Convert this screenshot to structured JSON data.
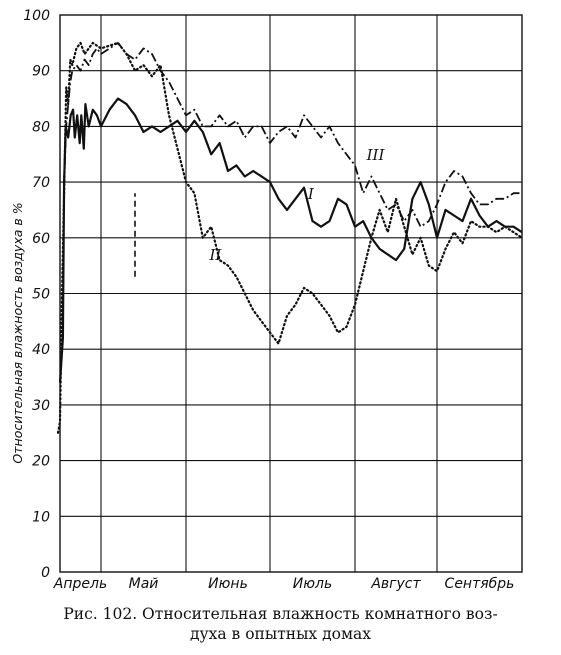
{
  "chart_data": {
    "type": "line",
    "ylim": [
      0,
      100
    ],
    "yticks": [
      "0",
      "10",
      "20",
      "30",
      "40",
      "50",
      "60",
      "70",
      "80",
      "90",
      "100"
    ],
    "ylabel": "Относительная влажность воздуха в %",
    "months": [
      "Апрель",
      "Май",
      "Июнь",
      "Июль",
      "Август",
      "Сентябрь"
    ],
    "xlim": [
      0,
      6
    ],
    "grid": true,
    "series": [
      {
        "name": "I",
        "style": "solid",
        "points": [
          [
            0.0,
            34
          ],
          [
            0.07,
            42
          ],
          [
            0.1,
            70
          ],
          [
            0.14,
            80
          ],
          [
            0.2,
            78
          ],
          [
            0.26,
            82
          ],
          [
            0.32,
            83
          ],
          [
            0.36,
            78
          ],
          [
            0.42,
            82
          ],
          [
            0.48,
            77
          ],
          [
            0.52,
            82
          ],
          [
            0.58,
            76
          ],
          [
            0.62,
            84
          ],
          [
            0.7,
            80
          ],
          [
            0.8,
            83
          ],
          [
            0.9,
            82
          ],
          [
            1.0,
            80
          ],
          [
            1.1,
            83
          ],
          [
            1.2,
            85
          ],
          [
            1.3,
            84
          ],
          [
            1.4,
            82
          ],
          [
            1.5,
            79
          ],
          [
            1.6,
            80
          ],
          [
            1.7,
            79
          ],
          [
            1.8,
            80
          ],
          [
            1.9,
            81
          ],
          [
            2.0,
            79
          ],
          [
            2.1,
            81
          ],
          [
            2.2,
            79
          ],
          [
            2.3,
            75
          ],
          [
            2.4,
            77
          ],
          [
            2.5,
            72
          ],
          [
            2.6,
            73
          ],
          [
            2.7,
            71
          ],
          [
            2.8,
            72
          ],
          [
            2.9,
            71
          ],
          [
            3.0,
            70
          ],
          [
            3.1,
            67
          ],
          [
            3.2,
            65
          ],
          [
            3.3,
            67
          ],
          [
            3.4,
            69
          ],
          [
            3.5,
            63
          ],
          [
            3.6,
            62
          ],
          [
            3.7,
            63
          ],
          [
            3.8,
            67
          ],
          [
            3.9,
            66
          ],
          [
            4.0,
            62
          ],
          [
            4.1,
            63
          ],
          [
            4.2,
            60
          ],
          [
            4.3,
            58
          ],
          [
            4.4,
            57
          ],
          [
            4.5,
            56
          ],
          [
            4.6,
            58
          ],
          [
            4.7,
            67
          ],
          [
            4.8,
            70
          ],
          [
            4.9,
            66
          ],
          [
            5.0,
            60
          ],
          [
            5.1,
            65
          ],
          [
            5.2,
            64
          ],
          [
            5.3,
            63
          ],
          [
            5.4,
            67
          ],
          [
            5.5,
            64
          ],
          [
            5.6,
            62
          ],
          [
            5.7,
            63
          ],
          [
            5.8,
            62
          ],
          [
            5.9,
            62
          ],
          [
            6.0,
            61
          ]
        ]
      },
      {
        "name": "II",
        "style": "dotted",
        "points": [
          [
            -0.05,
            25
          ],
          [
            0.0,
            27
          ],
          [
            0.05,
            50
          ],
          [
            0.1,
            68
          ],
          [
            0.15,
            87
          ],
          [
            0.2,
            84
          ],
          [
            0.25,
            92
          ],
          [
            0.3,
            91
          ],
          [
            0.4,
            94
          ],
          [
            0.5,
            95
          ],
          [
            0.6,
            93
          ],
          [
            0.8,
            95
          ],
          [
            1.0,
            94
          ],
          [
            1.2,
            95
          ],
          [
            1.3,
            93
          ],
          [
            1.4,
            90
          ],
          [
            1.5,
            91
          ],
          [
            1.6,
            89
          ],
          [
            1.7,
            91
          ],
          [
            1.8,
            82
          ],
          [
            1.9,
            76
          ],
          [
            2.0,
            70
          ],
          [
            2.1,
            68
          ],
          [
            2.2,
            60
          ],
          [
            2.3,
            62
          ],
          [
            2.4,
            56
          ],
          [
            2.5,
            55
          ],
          [
            2.6,
            53
          ],
          [
            2.7,
            50
          ],
          [
            2.8,
            47
          ],
          [
            2.9,
            45
          ],
          [
            3.0,
            43
          ],
          [
            3.1,
            41
          ],
          [
            3.2,
            46
          ],
          [
            3.3,
            48
          ],
          [
            3.4,
            51
          ],
          [
            3.5,
            50
          ],
          [
            3.6,
            48
          ],
          [
            3.7,
            46
          ],
          [
            3.8,
            43
          ],
          [
            3.9,
            44
          ],
          [
            4.0,
            48
          ],
          [
            4.1,
            54
          ],
          [
            4.2,
            60
          ],
          [
            4.3,
            65
          ],
          [
            4.4,
            61
          ],
          [
            4.5,
            67
          ],
          [
            4.6,
            62
          ],
          [
            4.7,
            57
          ],
          [
            4.8,
            60
          ],
          [
            4.9,
            55
          ],
          [
            5.0,
            54
          ],
          [
            5.1,
            58
          ],
          [
            5.2,
            61
          ],
          [
            5.3,
            59
          ],
          [
            5.4,
            63
          ],
          [
            5.5,
            62
          ],
          [
            5.6,
            62
          ],
          [
            5.7,
            61
          ],
          [
            5.8,
            62
          ],
          [
            5.9,
            61
          ],
          [
            6.0,
            60
          ]
        ]
      },
      {
        "name": "III",
        "style": "dashdot",
        "points": [
          [
            0.1,
            70
          ],
          [
            0.15,
            80
          ],
          [
            0.2,
            84
          ],
          [
            0.25,
            88
          ],
          [
            0.3,
            90
          ],
          [
            0.4,
            91
          ],
          [
            0.5,
            90
          ],
          [
            0.6,
            92
          ],
          [
            0.7,
            91
          ],
          [
            0.8,
            93
          ],
          [
            0.9,
            94
          ],
          [
            1.0,
            93
          ],
          [
            1.1,
            94
          ],
          [
            1.2,
            95
          ],
          [
            1.3,
            93
          ],
          [
            1.4,
            92
          ],
          [
            1.5,
            94
          ],
          [
            1.6,
            93
          ],
          [
            1.7,
            90
          ],
          [
            1.8,
            88
          ],
          [
            1.9,
            85
          ],
          [
            2.0,
            82
          ],
          [
            2.1,
            83
          ],
          [
            2.2,
            80
          ],
          [
            2.3,
            80
          ],
          [
            2.4,
            82
          ],
          [
            2.5,
            80
          ],
          [
            2.6,
            81
          ],
          [
            2.7,
            78
          ],
          [
            2.8,
            80
          ],
          [
            2.9,
            80
          ],
          [
            3.0,
            77
          ],
          [
            3.1,
            79
          ],
          [
            3.2,
            80
          ],
          [
            3.3,
            78
          ],
          [
            3.4,
            82
          ],
          [
            3.5,
            80
          ],
          [
            3.6,
            78
          ],
          [
            3.7,
            80
          ],
          [
            3.8,
            77
          ],
          [
            3.9,
            75
          ],
          [
            4.0,
            73
          ],
          [
            4.1,
            68
          ],
          [
            4.2,
            71
          ],
          [
            4.3,
            68
          ],
          [
            4.4,
            65
          ],
          [
            4.5,
            66
          ],
          [
            4.6,
            63
          ],
          [
            4.7,
            65
          ],
          [
            4.8,
            62
          ],
          [
            4.9,
            63
          ],
          [
            5.0,
            66
          ],
          [
            5.1,
            70
          ],
          [
            5.2,
            72
          ],
          [
            5.3,
            71
          ],
          [
            5.4,
            68
          ],
          [
            5.5,
            66
          ],
          [
            5.6,
            66
          ],
          [
            5.7,
            67
          ],
          [
            5.8,
            67
          ],
          [
            5.9,
            68
          ],
          [
            6.0,
            68
          ]
        ]
      }
    ],
    "series_labels": [
      {
        "text": "I",
        "x": 3.48,
        "y": 67
      },
      {
        "text": "II",
        "x": 2.35,
        "y": 56
      },
      {
        "text": "III",
        "x": 4.25,
        "y": 74
      }
    ],
    "marks": [
      {
        "style": "dashed-vertical",
        "x": 1.4,
        "y_from": 53,
        "y_to": 68
      }
    ]
  },
  "caption": {
    "line1": "Рис. 102. Относительная влажность комнатного воз-",
    "line2": "духа в опытных домах"
  }
}
